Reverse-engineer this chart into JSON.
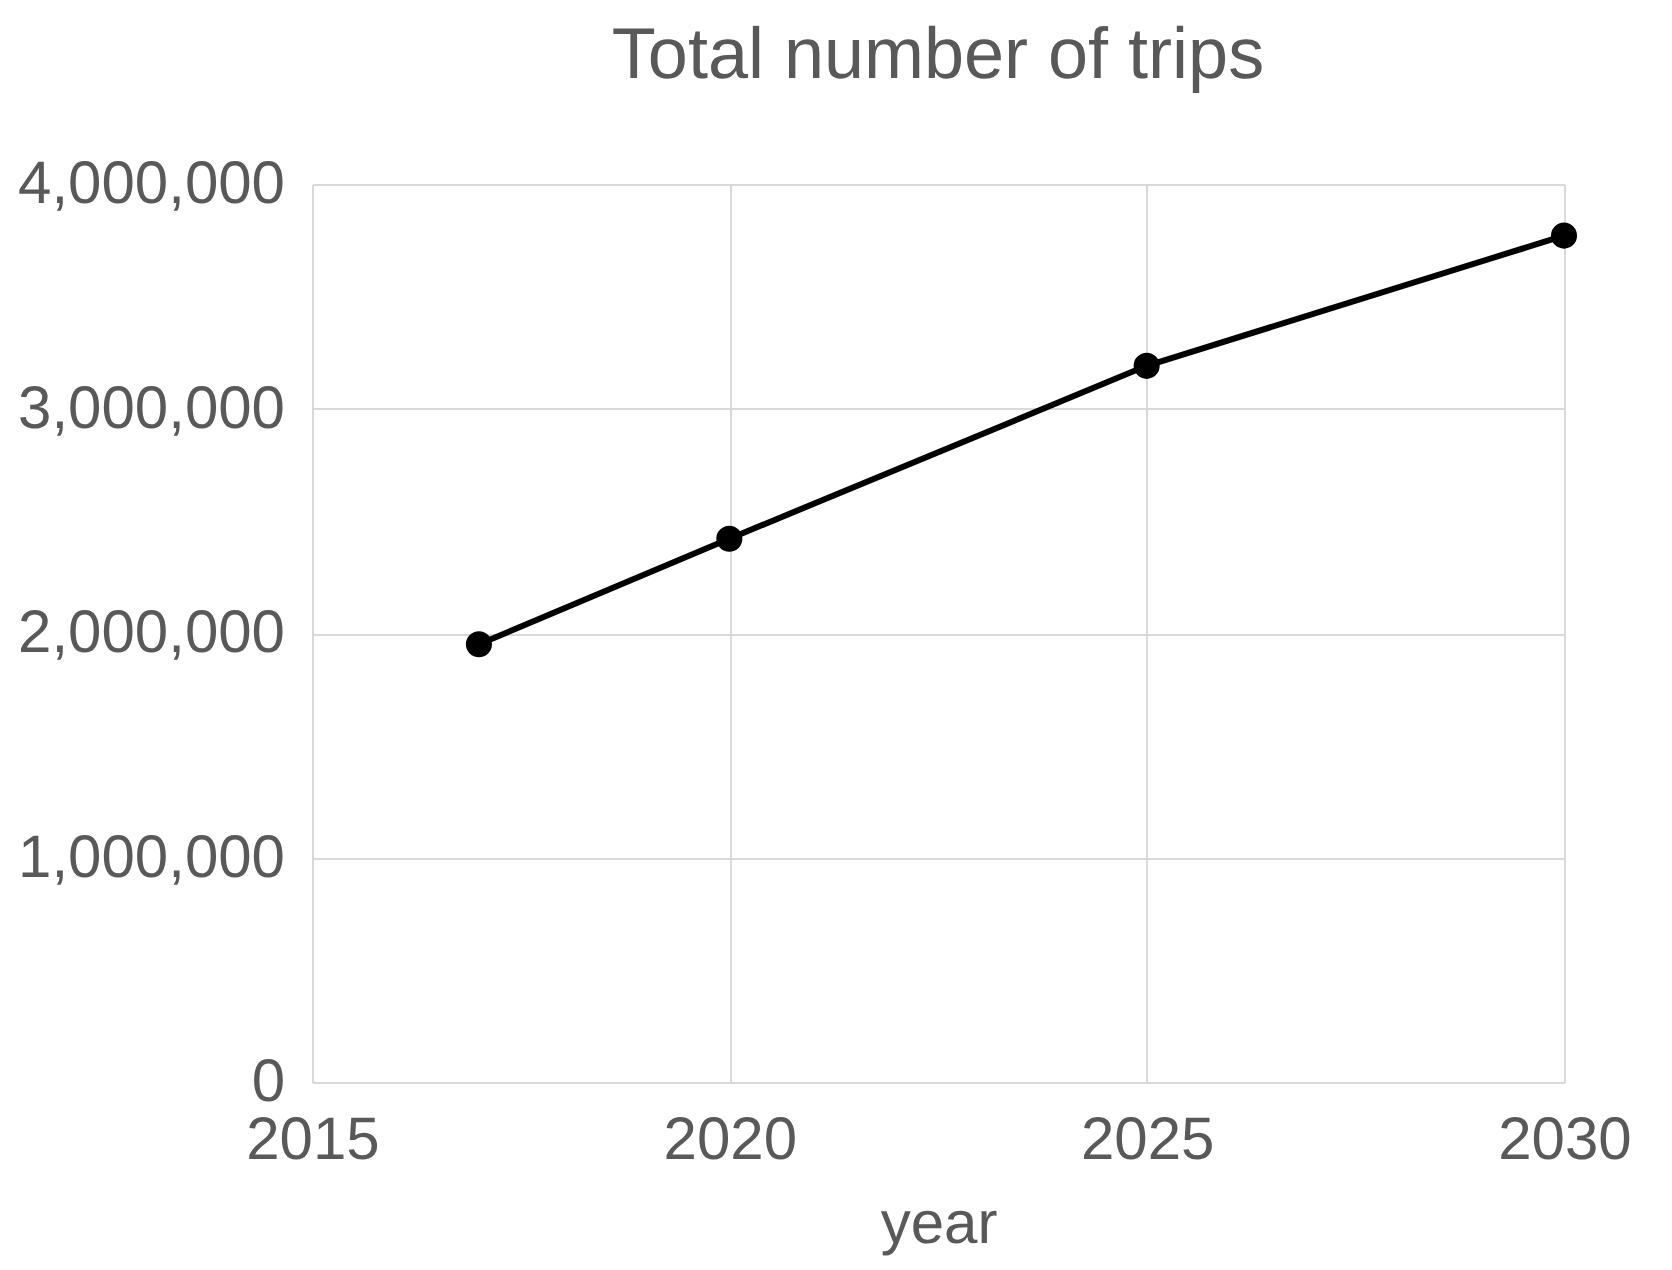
{
  "chart_data": {
    "type": "line",
    "title": "Total number of trips",
    "xlabel": "year",
    "x": [
      2017,
      2020,
      2025,
      2030
    ],
    "series": [
      {
        "color": "#000000",
        "values": [
          1950000,
          2420000,
          3190000,
          3770000
        ]
      }
    ],
    "xlim": [
      2015,
      2030
    ],
    "xticks": [
      2015,
      2020,
      2025,
      2030
    ],
    "ylim": [
      0,
      4000000
    ],
    "yticks": [
      0,
      {
        "value": 1000000,
        "label": "1,000,000"
      },
      {
        "value": 2000000,
        "label": "2,000,000"
      },
      {
        "value": 3000000,
        "label": "3,000,000"
      },
      {
        "value": 4000000,
        "label": "4,000,000"
      }
    ],
    "grid": true,
    "marker": "circle",
    "line_style": "solid"
  }
}
